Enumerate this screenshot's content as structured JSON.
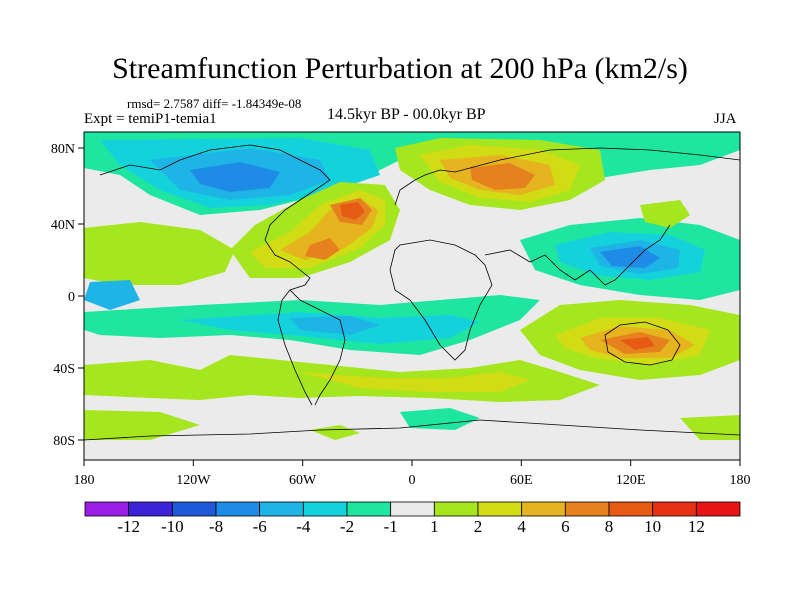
{
  "title": "Streamfunction Perturbation at 200 hPa (km2/s)",
  "rmsd_text": "rmsd= 2.7587 diff= -1.84349e-08",
  "expt_text": "Expt = temiP1-temia1",
  "period_text": "14.5kyr BP - 00.0kyr BP",
  "season_text": "JJA",
  "map": {
    "lat_ticks": [
      "80N",
      "40N",
      "0",
      "40S",
      "80S"
    ],
    "lon_ticks": [
      "180",
      "120W",
      "60W",
      "0",
      "60E",
      "120E",
      "180"
    ]
  },
  "colorbar": {
    "labels": [
      "-12",
      "-10",
      "-8",
      "-6",
      "-4",
      "-2",
      "-1",
      "1",
      "2",
      "4",
      "6",
      "8",
      "10",
      "12"
    ],
    "colors": [
      "#9b1ee6",
      "#3d23d8",
      "#1e5ad8",
      "#1e8ce6",
      "#1eb4e6",
      "#14d2dc",
      "#1ee6a0",
      "#ebebeb",
      "#a5e61e",
      "#d2dc14",
      "#e6b41e",
      "#e6821e",
      "#e65a14",
      "#e63214",
      "#e61414"
    ]
  }
}
